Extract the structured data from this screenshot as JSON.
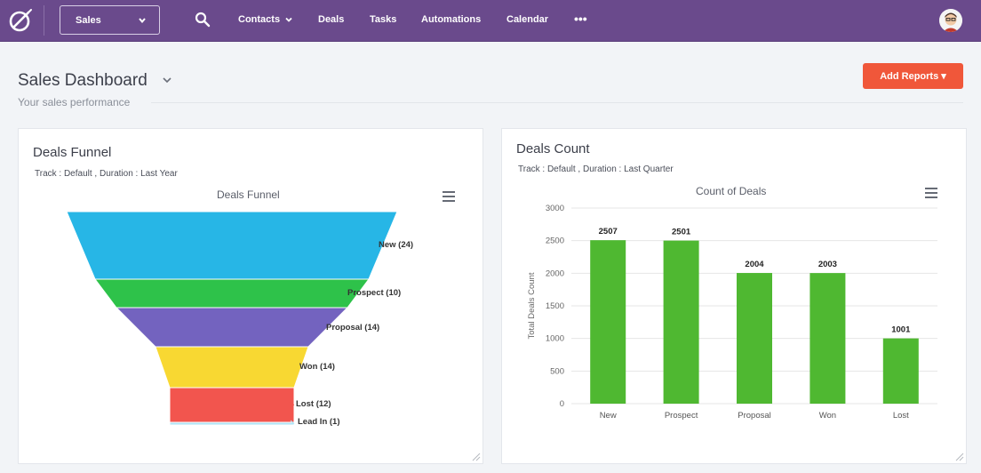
{
  "nav": {
    "pipeline_value": "Sales",
    "items": [
      "Contacts",
      "Deals",
      "Tasks",
      "Automations",
      "Calendar"
    ],
    "more": "•••",
    "accent": "#6a4a8c"
  },
  "header": {
    "title": "Sales Dashboard",
    "subtitle": "Your sales performance",
    "add_reports": "Add Reports ▾",
    "add_reports_color": "#f0573a"
  },
  "funnel_card": {
    "title": "Deals Funnel",
    "meta": "Track : Default ,  Duration : Last Year"
  },
  "count_card": {
    "title": "Deals Count",
    "meta": "Track : Default , Duration : Last Quarter"
  },
  "chart_data": [
    {
      "type": "funnel",
      "title": "Deals Funnel",
      "categories": [
        "New",
        "Prospect",
        "Proposal",
        "Won",
        "Lost",
        "Lead In"
      ],
      "values": [
        24,
        10,
        14,
        14,
        12,
        1
      ],
      "labels": [
        "New (24)",
        "Prospect (10)",
        "Proposal (14)",
        "Won (14)",
        "Lost (12)",
        "Lead In (1)"
      ],
      "colors": [
        "#27b6e6",
        "#2ec24a",
        "#7363bf",
        "#f8d832",
        "#f2554e",
        "#aee3f5"
      ]
    },
    {
      "type": "bar",
      "title": "Count of Deals",
      "categories": [
        "New",
        "Prospect",
        "Proposal",
        "Won",
        "Lost"
      ],
      "values": [
        2507,
        2501,
        2004,
        2003,
        1001
      ],
      "ylabel": "Total Deals Count",
      "xlabel": "",
      "ylim": [
        0,
        3000
      ],
      "yticks": [
        0,
        500,
        1000,
        1500,
        2000,
        2500,
        3000
      ],
      "color": "#4fb831"
    }
  ]
}
